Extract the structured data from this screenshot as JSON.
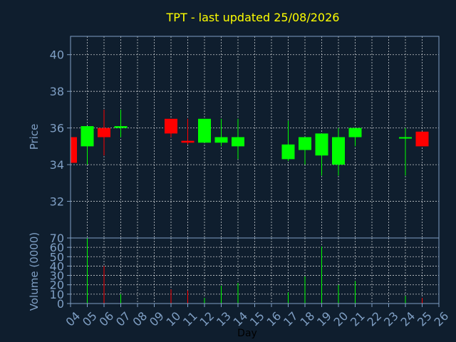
{
  "chart_data": [
    {
      "type": "candlestick",
      "title": "TPT - last updated 25/08/2026",
      "ylabel": "Price",
      "ylim": [
        30,
        41
      ],
      "yticks": [
        32,
        34,
        36,
        38,
        40
      ],
      "colors": {
        "up": "#00ff00",
        "down": "#ff0000"
      },
      "days": [
        "04",
        "05",
        "06",
        "07",
        "08",
        "09",
        "10",
        "11",
        "12",
        "13",
        "14",
        "15",
        "16",
        "17",
        "18",
        "19",
        "20",
        "21",
        "22",
        "23",
        "24",
        "25",
        "26"
      ],
      "candles": [
        {
          "day": "04",
          "open": 35.5,
          "high": 35.5,
          "low": 34.1,
          "close": 34.1
        },
        {
          "day": "05",
          "open": 35.0,
          "high": 36.1,
          "low": 34.0,
          "close": 36.1
        },
        {
          "day": "06",
          "open": 36.0,
          "high": 37.0,
          "low": 34.5,
          "close": 35.5
        },
        {
          "day": "07",
          "open": 36.0,
          "high": 37.0,
          "low": 35.5,
          "close": 36.1
        },
        {
          "day": "10",
          "open": 36.5,
          "high": 36.5,
          "low": 35.5,
          "close": 35.7
        },
        {
          "day": "11",
          "open": 35.3,
          "high": 36.5,
          "low": 35.1,
          "close": 35.2
        },
        {
          "day": "12",
          "open": 35.2,
          "high": 36.5,
          "low": 35.2,
          "close": 36.5
        },
        {
          "day": "13",
          "open": 35.2,
          "high": 36.5,
          "low": 35.0,
          "close": 35.5
        },
        {
          "day": "14",
          "open": 35.0,
          "high": 36.5,
          "low": 34.3,
          "close": 35.5
        },
        {
          "day": "17",
          "open": 34.3,
          "high": 36.4,
          "low": 34.2,
          "close": 35.1
        },
        {
          "day": "18",
          "open": 34.8,
          "high": 35.5,
          "low": 34.0,
          "close": 35.5
        },
        {
          "day": "19",
          "open": 34.5,
          "high": 35.7,
          "low": 33.4,
          "close": 35.7
        },
        {
          "day": "20",
          "open": 34.0,
          "high": 36.0,
          "low": 33.4,
          "close": 35.5
        },
        {
          "day": "21",
          "open": 35.5,
          "high": 36.0,
          "low": 35.0,
          "close": 36.0
        },
        {
          "day": "24",
          "open": 35.5,
          "high": 36.0,
          "low": 33.4,
          "close": 35.5
        },
        {
          "day": "25",
          "open": 35.8,
          "high": 35.8,
          "low": 35.0,
          "close": 35.0
        }
      ]
    },
    {
      "type": "bar",
      "ylabel": "Volume (0000)",
      "xlabel": "Day",
      "ylim": [
        0,
        70
      ],
      "yticks": [
        0,
        10,
        20,
        30,
        40,
        50,
        60,
        70
      ],
      "volumes": [
        {
          "day": "04",
          "value": 0,
          "dir": "down"
        },
        {
          "day": "05",
          "value": 70,
          "dir": "up"
        },
        {
          "day": "06",
          "value": 40,
          "dir": "down"
        },
        {
          "day": "07",
          "value": 10,
          "dir": "up"
        },
        {
          "day": "10",
          "value": 15,
          "dir": "down"
        },
        {
          "day": "11",
          "value": 14,
          "dir": "down"
        },
        {
          "day": "12",
          "value": 6,
          "dir": "up"
        },
        {
          "day": "13",
          "value": 19,
          "dir": "up"
        },
        {
          "day": "14",
          "value": 22,
          "dir": "up"
        },
        {
          "day": "17",
          "value": 12,
          "dir": "up"
        },
        {
          "day": "18",
          "value": 29,
          "dir": "up"
        },
        {
          "day": "19",
          "value": 61,
          "dir": "up"
        },
        {
          "day": "20",
          "value": 20,
          "dir": "up"
        },
        {
          "day": "21",
          "value": 24,
          "dir": "up"
        },
        {
          "day": "24",
          "value": 8,
          "dir": "up"
        },
        {
          "day": "25",
          "value": 6,
          "dir": "down"
        }
      ]
    }
  ]
}
